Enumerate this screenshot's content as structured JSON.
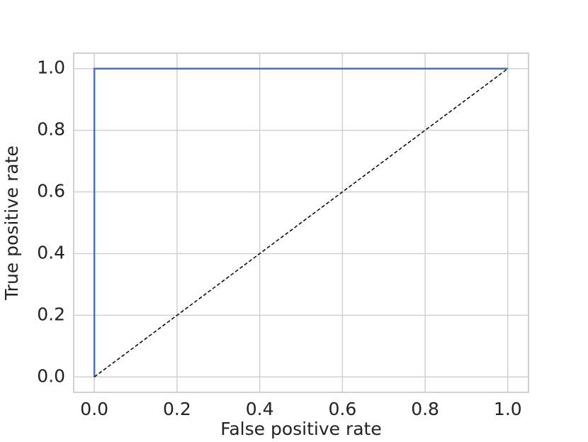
{
  "chart_data": {
    "type": "line",
    "xlabel": "False positive rate",
    "ylabel": "True positive rate",
    "series": [
      {
        "color": "#4c72b0",
        "linestyle": "solid",
        "x": [
          0,
          0,
          1
        ],
        "values": [
          0,
          1,
          1
        ]
      },
      {
        "color": "#000000",
        "linestyle": "dashed",
        "x": [
          0,
          1
        ],
        "values": [
          0,
          1
        ]
      }
    ],
    "xlim": [
      -0.05,
      1.05
    ],
    "ylim": [
      -0.05,
      1.05
    ],
    "xticks": [
      {
        "value": 0,
        "label": "0.0"
      },
      0.2,
      0.4,
      0.6,
      0.8,
      {
        "value": 1,
        "label": "1.0"
      }
    ],
    "yticks": [
      {
        "value": 0,
        "label": "0.0"
      },
      0.2,
      0.4,
      0.6,
      0.8,
      {
        "value": 1,
        "label": "1.0"
      }
    ],
    "grid": true
  }
}
